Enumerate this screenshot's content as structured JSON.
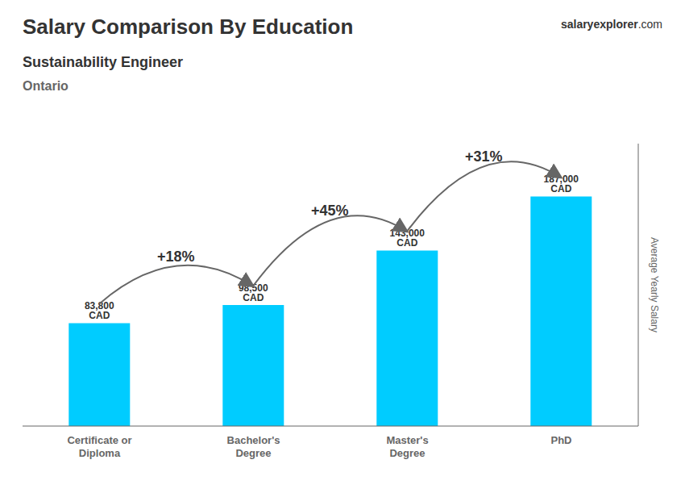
{
  "chart_data": {
    "type": "bar",
    "title": "Salary Comparison By Education",
    "subtitle": "Sustainability Engineer",
    "location": "Ontario",
    "watermark": [
      "salary",
      "explorer",
      ".com"
    ],
    "ylabel": "Average Yearly Salary",
    "categories": [
      "Certificate or\nDiploma",
      "Bachelor's\nDegree",
      "Master's\nDegree",
      "PhD"
    ],
    "values": [
      83800,
      98500,
      143000,
      187000
    ],
    "value_labels": [
      "83,800 CAD",
      "98,500 CAD",
      "143,000 CAD",
      "187,000 CAD"
    ],
    "data_labels": true,
    "annotations": [
      "+18%",
      "+45%",
      "+31%"
    ],
    "color": "#00CCFF",
    "ylim": [
      0,
      230000
    ],
    "yticks": [],
    "tick_labels": "x",
    "grid": false
  }
}
